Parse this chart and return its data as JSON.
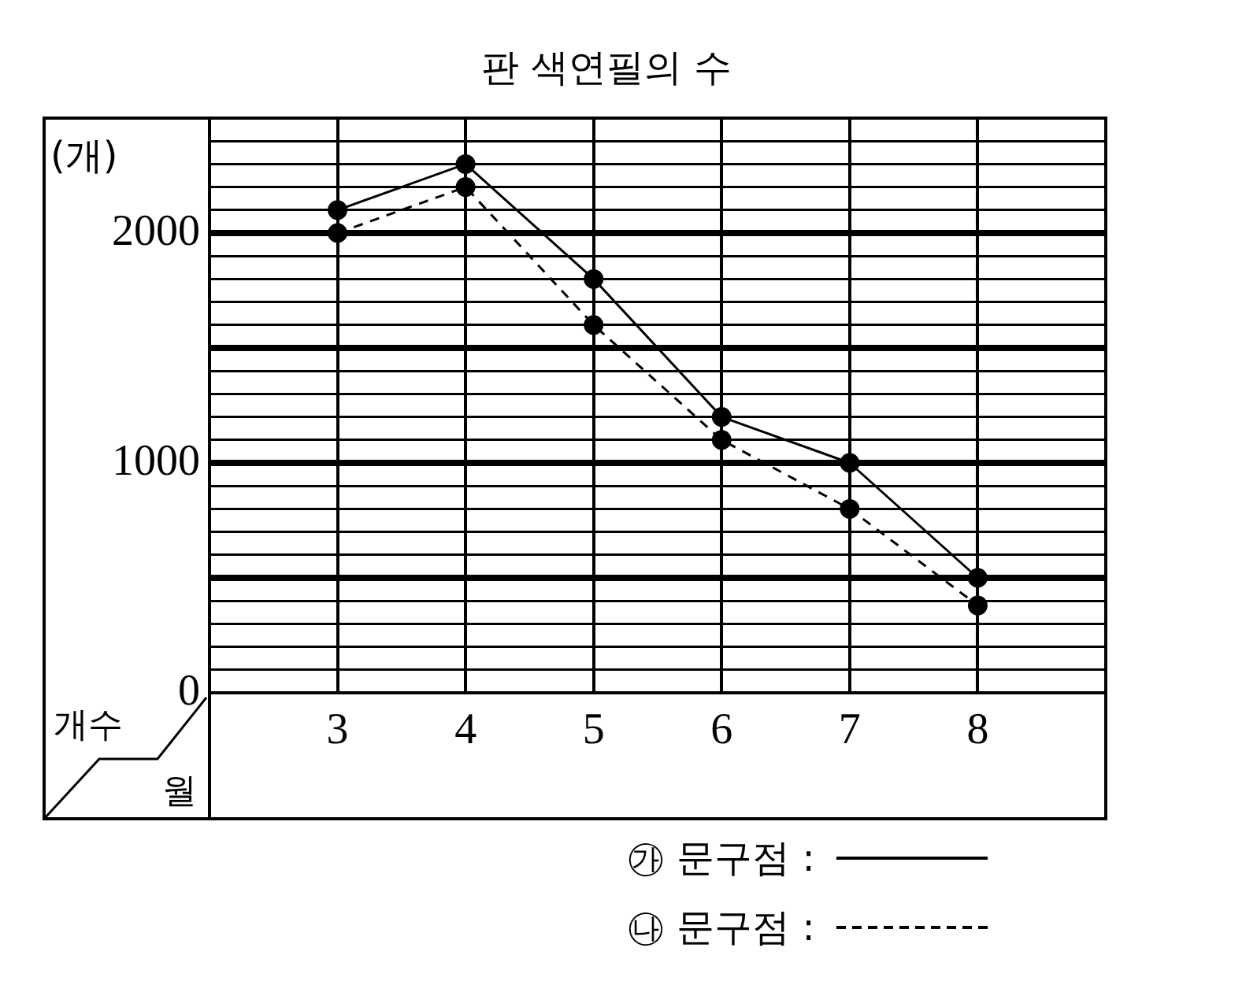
{
  "chart_data": {
    "type": "line",
    "title": "판 색연필의 수",
    "xlabel": "월",
    "ylabel": "개수",
    "annotations": [
      "(개)"
    ],
    "x": [
      3,
      4,
      5,
      6,
      7,
      8
    ],
    "xlim": [
      2,
      9
    ],
    "xticks": [
      3,
      4,
      5,
      6,
      7,
      8
    ],
    "ylim": [
      0,
      2500
    ],
    "yticks": [
      0,
      {
        "value": 100,
        "label": null
      },
      {
        "value": 200,
        "label": null
      },
      {
        "value": 300,
        "label": null
      },
      {
        "value": 400,
        "label": null
      },
      {
        "value": 500,
        "label": null
      },
      {
        "value": 600,
        "label": null
      },
      {
        "value": 700,
        "label": null
      },
      {
        "value": 800,
        "label": null
      },
      {
        "value": 900,
        "label": null
      },
      1000,
      {
        "value": 1100,
        "label": null
      },
      {
        "value": 1200,
        "label": null
      },
      {
        "value": 1300,
        "label": null
      },
      {
        "value": 1400,
        "label": null
      },
      {
        "value": 1500,
        "label": null
      },
      {
        "value": 1600,
        "label": null
      },
      {
        "value": 1700,
        "label": null
      },
      {
        "value": 1800,
        "label": null
      },
      {
        "value": 1900,
        "label": null
      },
      2000,
      {
        "value": 2100,
        "label": null
      },
      {
        "value": 2200,
        "label": null
      },
      {
        "value": 2300,
        "label": null
      },
      {
        "value": 2400,
        "label": null
      },
      {
        "value": 2500,
        "label": null
      }
    ],
    "grid": true,
    "marker": "circle",
    "legend": "bottom right",
    "series": [
      {
        "name": "㉮ 문구점 :",
        "color": "#000000",
        "line_style": "solid",
        "values": [
          2100,
          2300,
          1800,
          1200,
          1000,
          500
        ]
      },
      {
        "name": "㉯ 문구점 :",
        "color": "#000000",
        "line_style": "dashed",
        "values": [
          2000,
          2200,
          1600,
          1100,
          800,
          380
        ]
      }
    ]
  }
}
